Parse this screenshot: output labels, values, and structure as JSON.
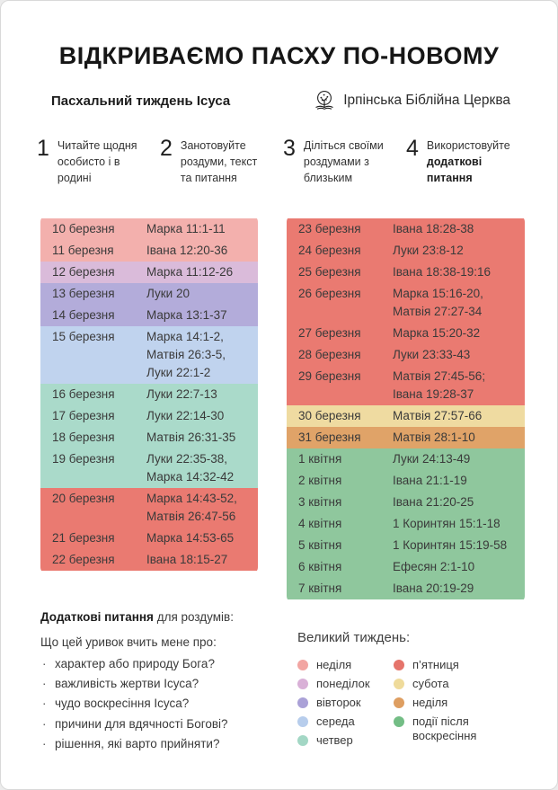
{
  "header": {
    "title": "ВІДКРИВАЄМО ПАСХУ ПО-НОВОМУ",
    "subtitle": "Пасхальний тиждень Ісуса",
    "church": "Ірпінська Біблійна Церква",
    "logo_icon": "tree-over-open-book-icon"
  },
  "steps": [
    {
      "number": "1",
      "lead": "Читайте щодня особисто і в родині",
      "bold": ""
    },
    {
      "number": "2",
      "lead": "Занотовуйте роздуми, текст та питання",
      "bold": ""
    },
    {
      "number": "3",
      "lead": "Діліться своїми роздумами з близьким",
      "bold": ""
    },
    {
      "number": "4",
      "lead": "Використовуйте ",
      "bold": "додаткові питання"
    }
  ],
  "colors": {
    "rows": {
      "sunday1": "#f3b0ad",
      "monday": "#dabbda",
      "tuesday": "#b3acda",
      "wednesday": "#c0d3ee",
      "thursday": "#aadaca",
      "friday": "#ea7a71",
      "saturday": "#efdba1",
      "sunday2": "#e0a368",
      "after": "#8fc79d"
    },
    "dots": {
      "sunday1": "#f2a5a2",
      "monday": "#d9b0d7",
      "tuesday": "#aaa1d7",
      "wednesday": "#b7cdec",
      "thursday": "#a3d7c5",
      "friday": "#e5746b",
      "saturday": "#efdb9b",
      "sunday2": "#de9e61",
      "after": "#73bd85"
    }
  },
  "schedule": {
    "left": [
      {
        "date": "10 березня",
        "reading": "Марка 11:1-11",
        "day": "sunday1"
      },
      {
        "date": "11 березня",
        "reading": "Івана 12:20-36",
        "day": "sunday1"
      },
      {
        "date": "12 березня",
        "reading": "Марка 11:12-26",
        "day": "monday"
      },
      {
        "date": "13 березня",
        "reading": "Луки 20",
        "day": "tuesday"
      },
      {
        "date": "14 березня",
        "reading": "Марка 13:1-37",
        "day": "tuesday"
      },
      {
        "date": "15 березня",
        "reading": "Марка 14:1-2,\nМатвія 26:3-5,\nЛуки 22:1-2",
        "day": "wednesday"
      },
      {
        "date": "16 березня",
        "reading": "Луки 22:7-13",
        "day": "thursday"
      },
      {
        "date": "17 березня",
        "reading": "Луки 22:14-30",
        "day": "thursday"
      },
      {
        "date": "18 березня",
        "reading": "Матвія 26:31-35",
        "day": "thursday"
      },
      {
        "date": "19 березня",
        "reading": "Луки 22:35-38,\nМарка 14:32-42",
        "day": "thursday"
      },
      {
        "date": "20 березня",
        "reading": "Марка 14:43-52,\nМатвія 26:47-56",
        "day": "friday"
      },
      {
        "date": "21 березня",
        "reading": "Марка 14:53-65",
        "day": "friday"
      },
      {
        "date": "22 березня",
        "reading": "Івана 18:15-27",
        "day": "friday"
      }
    ],
    "right": [
      {
        "date": "23 березня",
        "reading": "Івана 18:28-38",
        "day": "friday"
      },
      {
        "date": "24 березня",
        "reading": "Луки 23:8-12",
        "day": "friday"
      },
      {
        "date": "25 березня",
        "reading": "Івана 18:38-19:16",
        "day": "friday"
      },
      {
        "date": "26 березня",
        "reading": "Марка 15:16-20,\nМатвія 27:27-34",
        "day": "friday"
      },
      {
        "date": "27 березня",
        "reading": "Марка 15:20-32",
        "day": "friday"
      },
      {
        "date": "28 березня",
        "reading": "Луки 23:33-43",
        "day": "friday"
      },
      {
        "date": "29 березня",
        "reading": "Матвія 27:45-56;\nІвана 19:28-37",
        "day": "friday"
      },
      {
        "date": "30 березня",
        "reading": "Матвія 27:57-66",
        "day": "saturday"
      },
      {
        "date": "31 березня",
        "reading": "Матвія 28:1-10",
        "day": "sunday2"
      },
      {
        "date": "1 квітня",
        "reading": "Луки 24:13-49",
        "day": "after"
      },
      {
        "date": "2 квітня",
        "reading": "Івана 21:1-19",
        "day": "after"
      },
      {
        "date": "3 квітня",
        "reading": "Івана 21:20-25",
        "day": "after"
      },
      {
        "date": "4 квітня",
        "reading": "1 Коринтян 15:1-18",
        "day": "after"
      },
      {
        "date": "5 квітня",
        "reading": "1 Коринтян 15:19-58",
        "day": "after"
      },
      {
        "date": "6 квітня",
        "reading": "Ефесян 2:1-10",
        "day": "after"
      },
      {
        "date": "7 квітня",
        "reading": "Івана 20:19-29",
        "day": "after"
      }
    ]
  },
  "questions": {
    "heading_bold": "Додаткові питання",
    "heading_rest": " для роздумів:",
    "intro": "Що цей уривок вчить мене про:",
    "bullet": "·",
    "items": [
      "характер або природу Бога?",
      "важливість жертви Ісуса?",
      "чудо воскресіння Ісуса?",
      "причини для вдячності Богові?",
      "рішення, які варто прийняти?"
    ]
  },
  "legend": {
    "title": "Великий тиждень:",
    "left": [
      {
        "label": "неділя",
        "day": "sunday1"
      },
      {
        "label": "понеділок",
        "day": "monday"
      },
      {
        "label": "вівторок",
        "day": "tuesday"
      },
      {
        "label": "середа",
        "day": "wednesday"
      },
      {
        "label": "четвер",
        "day": "thursday"
      }
    ],
    "right": [
      {
        "label": "п’ятниця",
        "day": "friday"
      },
      {
        "label": "субота",
        "day": "saturday"
      },
      {
        "label": "неділя",
        "day": "sunday2"
      },
      {
        "label": "події після воскресіння",
        "day": "after"
      }
    ]
  }
}
